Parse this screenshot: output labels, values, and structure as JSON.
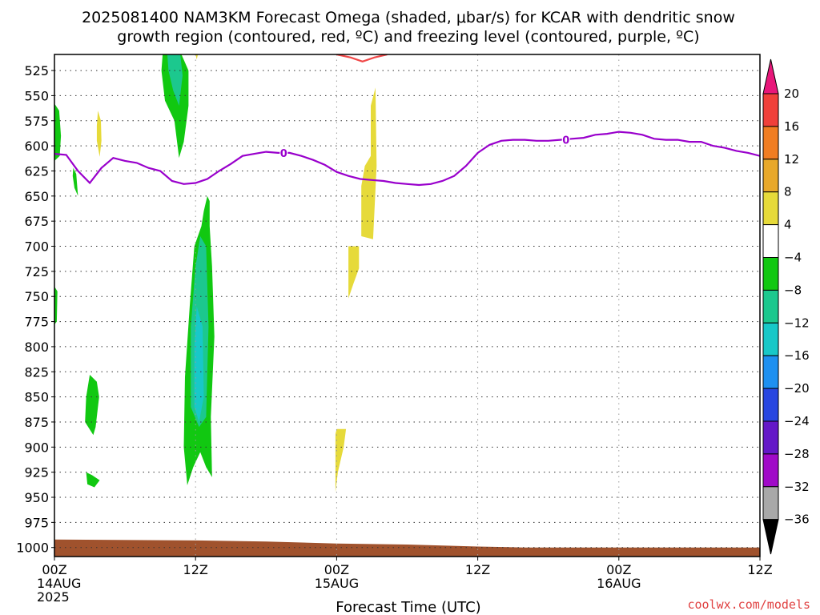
{
  "chart_data": {
    "type": "heatmap",
    "title_lines": [
      "2025081400 NAM3KM Forecast Omega (shaded, μbar/s) for KCAR with dendritic snow",
      "growth region (contoured, red, ºC) and freezing level (contoured, purple, ºC)"
    ],
    "xlabel": "Forecast Time (UTC)",
    "x_ticks": [
      {
        "hour": 0,
        "lines": [
          "00Z",
          "14AUG",
          "2025"
        ]
      },
      {
        "hour": 12,
        "lines": [
          "12Z"
        ]
      },
      {
        "hour": 24,
        "lines": [
          "00Z",
          "15AUG"
        ]
      },
      {
        "hour": 36,
        "lines": [
          "12Z"
        ]
      },
      {
        "hour": 48,
        "lines": [
          "00Z",
          "16AUG"
        ]
      },
      {
        "hour": 60,
        "lines": [
          "12Z"
        ]
      }
    ],
    "x_range_hours": [
      0,
      60
    ],
    "y_ticks": [
      "525",
      "550",
      "575",
      "600",
      "625",
      "650",
      "675",
      "700",
      "725",
      "750",
      "775",
      "800",
      "825",
      "850",
      "875",
      "900",
      "925",
      "950",
      "975",
      "1000"
    ],
    "y_range_hpa": [
      509,
      1009
    ],
    "grid": true,
    "colorbar": {
      "ticks": [
        "20",
        "16",
        "12",
        "8",
        "4",
        "−4",
        "−8",
        "−12",
        "−16",
        "−20",
        "−24",
        "−28",
        "−32",
        "−36"
      ],
      "bins": [
        {
          "range": [
            20,
            24
          ],
          "color": "#e8177a"
        },
        {
          "range": [
            16,
            20
          ],
          "color": "#f0403a"
        },
        {
          "range": [
            12,
            16
          ],
          "color": "#f07d22"
        },
        {
          "range": [
            8,
            12
          ],
          "color": "#e8a82a"
        },
        {
          "range": [
            4,
            8
          ],
          "color": "#e6da3a"
        },
        {
          "range": [
            -4,
            4
          ],
          "color": "#ffffff"
        },
        {
          "range": [
            -8,
            -4
          ],
          "color": "#11c811"
        },
        {
          "range": [
            -12,
            -8
          ],
          "color": "#1cc88e"
        },
        {
          "range": [
            -16,
            -12
          ],
          "color": "#18c8c8"
        },
        {
          "range": [
            -20,
            -16
          ],
          "color": "#1e90f0"
        },
        {
          "range": [
            -24,
            -20
          ],
          "color": "#2846e0"
        },
        {
          "range": [
            -28,
            -24
          ],
          "color": "#6418c8"
        },
        {
          "range": [
            -32,
            -28
          ],
          "color": "#a00ac8"
        },
        {
          "range": [
            -36,
            -32
          ],
          "color": "#a8a8a8"
        },
        {
          "range": [
            -40,
            -36
          ],
          "color": "#000000"
        }
      ]
    },
    "freezing_level": {
      "label": "0",
      "color": "#9900cc",
      "points": [
        [
          0,
          608
        ],
        [
          1,
          609
        ],
        [
          2,
          625
        ],
        [
          3,
          637
        ],
        [
          4,
          622
        ],
        [
          5,
          612
        ],
        [
          6,
          615
        ],
        [
          7,
          617
        ],
        [
          8,
          622
        ],
        [
          9,
          625
        ],
        [
          10,
          635
        ],
        [
          11,
          638
        ],
        [
          12,
          637
        ],
        [
          13,
          633
        ],
        [
          14,
          625
        ],
        [
          15,
          618
        ],
        [
          16,
          610
        ],
        [
          17,
          608
        ],
        [
          18,
          606
        ],
        [
          19,
          607
        ],
        [
          20,
          607
        ],
        [
          21,
          610
        ],
        [
          22,
          614
        ],
        [
          23,
          619
        ],
        [
          24,
          626
        ],
        [
          25,
          630
        ],
        [
          26,
          633
        ],
        [
          27,
          634
        ],
        [
          28,
          635
        ],
        [
          29,
          637
        ],
        [
          30,
          638
        ],
        [
          31,
          639
        ],
        [
          32,
          638
        ],
        [
          33,
          635
        ],
        [
          34,
          630
        ],
        [
          35,
          620
        ],
        [
          36,
          607
        ],
        [
          37,
          599
        ],
        [
          38,
          595
        ],
        [
          39,
          594
        ],
        [
          40,
          594
        ],
        [
          41,
          595
        ],
        [
          42,
          595
        ],
        [
          43,
          594
        ],
        [
          44,
          593
        ],
        [
          45,
          592
        ],
        [
          46,
          589
        ],
        [
          47,
          588
        ],
        [
          48,
          586
        ],
        [
          49,
          587
        ],
        [
          50,
          589
        ],
        [
          51,
          593
        ],
        [
          52,
          594
        ],
        [
          53,
          594
        ],
        [
          54,
          596
        ],
        [
          55,
          596
        ],
        [
          56,
          600
        ],
        [
          57,
          602
        ],
        [
          58,
          605
        ],
        [
          59,
          607
        ],
        [
          60,
          610
        ]
      ]
    },
    "dgz_contour": {
      "color": "#f04848",
      "points": [
        [
          24.0,
          509
        ],
        [
          25.2,
          512
        ],
        [
          26.2,
          516
        ],
        [
          27.2,
          512
        ],
        [
          28.3,
          509
        ]
      ]
    },
    "terrain": {
      "color": "#a0522d",
      "top_hpa": [
        [
          0,
          992
        ],
        [
          12,
          993
        ],
        [
          18,
          994
        ],
        [
          24,
          996
        ],
        [
          30,
          997
        ],
        [
          36,
          999
        ],
        [
          40,
          1000
        ],
        [
          60,
          1000
        ]
      ]
    },
    "omega_areas": [
      {
        "value": -6,
        "points": [
          [
            9.2,
            509
          ],
          [
            10.8,
            509
          ],
          [
            11.4,
            525
          ],
          [
            11.4,
            560
          ],
          [
            11.0,
            596
          ],
          [
            10.6,
            612
          ],
          [
            10.2,
            575
          ],
          [
            9.4,
            555
          ],
          [
            9.1,
            525
          ]
        ]
      },
      {
        "value": -10,
        "points": [
          [
            9.6,
            509
          ],
          [
            10.7,
            509
          ],
          [
            10.9,
            530
          ],
          [
            10.6,
            560
          ],
          [
            10.1,
            545
          ],
          [
            9.7,
            525
          ]
        ]
      },
      {
        "value": 5,
        "points": [
          [
            12.0,
            509
          ],
          [
            12.2,
            509
          ],
          [
            12.1,
            514
          ]
        ]
      },
      {
        "value": 5,
        "points": [
          [
            3.7,
            565
          ],
          [
            3.95,
            575
          ],
          [
            4.0,
            595
          ],
          [
            3.85,
            611
          ],
          [
            3.6,
            595
          ],
          [
            3.6,
            580
          ]
        ]
      },
      {
        "value": -6,
        "points": [
          [
            0,
            558
          ],
          [
            0.4,
            565
          ],
          [
            0.55,
            590
          ],
          [
            0.45,
            610
          ],
          [
            0,
            615
          ]
        ]
      },
      {
        "value": -6,
        "points": [
          [
            1.6,
            622
          ],
          [
            1.85,
            628
          ],
          [
            2.0,
            650
          ],
          [
            1.7,
            642
          ],
          [
            1.55,
            630
          ]
        ]
      },
      {
        "value": -6,
        "points": [
          [
            0,
            740
          ],
          [
            0.25,
            745
          ],
          [
            0.2,
            775
          ],
          [
            0,
            778
          ]
        ]
      },
      {
        "value": -6,
        "points": [
          [
            13.0,
            650
          ],
          [
            13.2,
            655
          ],
          [
            13.2,
            680
          ],
          [
            13.4,
            720
          ],
          [
            13.6,
            790
          ],
          [
            13.3,
            870
          ],
          [
            13.4,
            930
          ],
          [
            12.9,
            920
          ],
          [
            12.4,
            905
          ],
          [
            11.8,
            920
          ],
          [
            11.3,
            938
          ],
          [
            11.0,
            900
          ],
          [
            11.1,
            830
          ],
          [
            11.5,
            760
          ],
          [
            11.9,
            700
          ],
          [
            12.5,
            680
          ],
          [
            12.7,
            665
          ]
        ]
      },
      {
        "value": -10,
        "points": [
          [
            12.4,
            690
          ],
          [
            12.9,
            700
          ],
          [
            13.1,
            780
          ],
          [
            12.9,
            870
          ],
          [
            12.3,
            880
          ],
          [
            11.6,
            860
          ],
          [
            11.6,
            780
          ],
          [
            12.0,
            720
          ]
        ]
      },
      {
        "value": -14,
        "points": [
          [
            12.1,
            760
          ],
          [
            12.6,
            780
          ],
          [
            12.7,
            850
          ],
          [
            12.3,
            875
          ],
          [
            11.9,
            860
          ],
          [
            11.9,
            800
          ]
        ]
      },
      {
        "value": -6,
        "points": [
          [
            3.0,
            828
          ],
          [
            3.6,
            835
          ],
          [
            3.8,
            850
          ],
          [
            3.5,
            880
          ],
          [
            3.3,
            888
          ],
          [
            2.6,
            875
          ],
          [
            2.7,
            850
          ]
        ]
      },
      {
        "value": -6,
        "points": [
          [
            2.7,
            925
          ],
          [
            3.2,
            928
          ],
          [
            3.85,
            933
          ],
          [
            3.4,
            940
          ],
          [
            2.8,
            937
          ]
        ]
      },
      {
        "value": 5,
        "points": [
          [
            26.9,
            610
          ],
          [
            26.9,
            560
          ],
          [
            27.3,
            542
          ],
          [
            27.4,
            620
          ],
          [
            27.1,
            693
          ],
          [
            26.1,
            690
          ],
          [
            26.1,
            640
          ],
          [
            26.4,
            620
          ]
        ]
      },
      {
        "value": 5,
        "points": [
          [
            25.0,
            700
          ],
          [
            25.9,
            700
          ],
          [
            25.9,
            722
          ],
          [
            25.4,
            738
          ],
          [
            25.0,
            752
          ]
        ]
      },
      {
        "value": 5,
        "points": [
          [
            23.9,
            887
          ],
          [
            24.0,
            882
          ],
          [
            24.8,
            882
          ],
          [
            24.6,
            900
          ],
          [
            24.1,
            925
          ],
          [
            23.9,
            945
          ]
        ]
      }
    ]
  },
  "credit": "coolwx.com/models"
}
